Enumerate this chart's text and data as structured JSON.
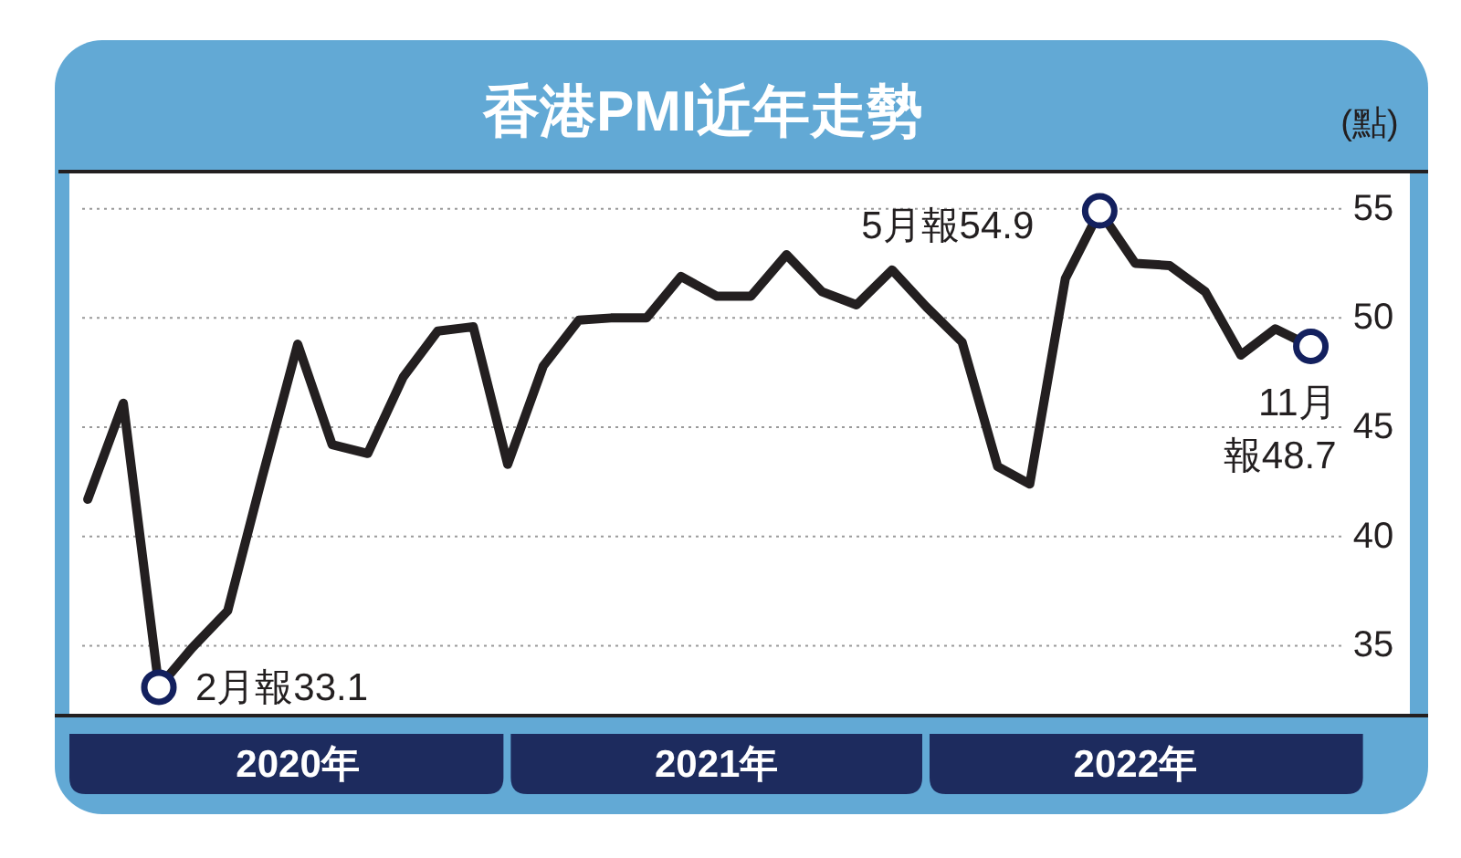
{
  "chart_data": {
    "type": "line",
    "title": "香港PMI近年走勢",
    "ylabel": "(點)",
    "x": [
      "2019-12",
      "2020-01",
      "2020-02",
      "2020-03",
      "2020-04",
      "2020-05",
      "2020-06",
      "2020-07",
      "2020-08",
      "2020-09",
      "2020-10",
      "2020-11",
      "2020-12",
      "2021-01",
      "2021-02",
      "2021-03",
      "2021-04",
      "2021-05",
      "2021-06",
      "2021-07",
      "2021-08",
      "2021-09",
      "2021-10",
      "2021-11",
      "2021-12",
      "2022-01",
      "2022-02",
      "2022-03",
      "2022-04",
      "2022-05",
      "2022-06",
      "2022-07",
      "2022-08",
      "2022-09",
      "2022-10",
      "2022-11"
    ],
    "series": [
      {
        "color": "#231f20",
        "values": [
          41.7,
          46.1,
          33.1,
          34.9,
          36.6,
          42.7,
          48.8,
          44.2,
          43.8,
          47.3,
          49.4,
          49.6,
          43.3,
          47.8,
          49.9,
          50.0,
          50.0,
          51.9,
          51.0,
          51.0,
          52.9,
          51.2,
          50.6,
          52.2,
          50.5,
          48.9,
          43.2,
          42.4,
          51.8,
          54.9,
          52.5,
          52.4,
          51.2,
          48.3,
          49.5,
          48.7
        ]
      },
      {
        "type": "scatter",
        "x": [
          "2020-02",
          "2022-05",
          "2022-11"
        ],
        "values": [
          33.1,
          54.9,
          48.7
        ],
        "color": "#13205e",
        "marker": "circle"
      }
    ],
    "xlim": [
      "2019-11-15",
      "2022-11-30"
    ],
    "xticks": [
      {
        "value": "2020-06",
        "label": "2020年"
      },
      {
        "value": "2021-06",
        "label": "2021年"
      },
      {
        "value": "2022-06",
        "label": "2022年"
      }
    ],
    "ylim": [
      31.8,
      56.7
    ],
    "yticks": [
      35,
      40,
      45,
      50,
      55
    ],
    "grid": "y",
    "line_style": "solid",
    "annotations": [
      {
        "text": "2月報33.1",
        "x": "2020-02",
        "y": 33.1
      },
      {
        "text": "5月報54.9",
        "x": "2022-05",
        "y": 54.9
      },
      {
        "text": "11月報48.7",
        "x": "2022-11",
        "y": 48.7
      }
    ]
  }
}
